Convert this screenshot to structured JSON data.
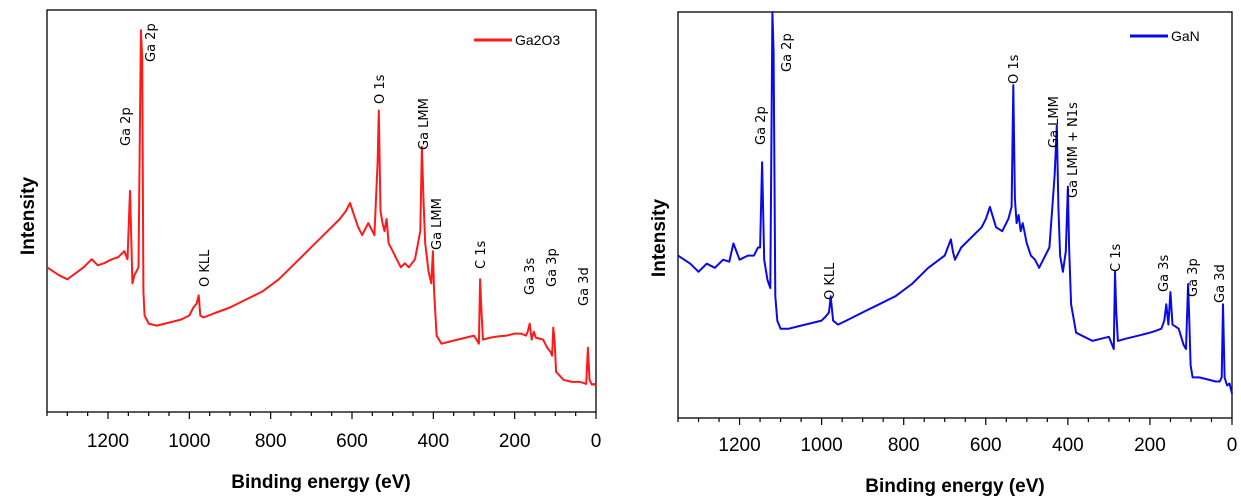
{
  "chart_data": [
    {
      "type": "line",
      "xlabel": "Binding energy (eV)",
      "ylabel": "Intensity",
      "xlim": [
        1350,
        0
      ],
      "ylim": [
        0,
        100
      ],
      "x_ticks": [
        1200,
        1000,
        800,
        600,
        400,
        200,
        0
      ],
      "legend_position": "top-right",
      "series": [
        {
          "name": "Ga2O3",
          "color": "#ff1a1a",
          "x": [
            1350,
            1320,
            1300,
            1280,
            1260,
            1240,
            1225,
            1210,
            1190,
            1175,
            1160,
            1152,
            1146,
            1142,
            1140,
            1135,
            1125,
            1119,
            1116,
            1113,
            1110,
            1100,
            1080,
            1060,
            1040,
            1020,
            1000,
            990,
            982,
            977,
            973,
            965,
            940,
            900,
            860,
            820,
            780,
            740,
            700,
            660,
            630,
            615,
            605,
            595,
            585,
            575,
            560,
            545,
            537,
            534,
            530,
            525,
            520,
            515,
            510,
            500,
            490,
            480,
            470,
            460,
            445,
            432,
            428,
            424,
            420,
            412,
            405,
            401,
            398,
            392,
            380,
            360,
            340,
            320,
            300,
            288,
            285,
            282,
            278,
            260,
            240,
            220,
            200,
            185,
            172,
            168,
            163,
            158,
            153,
            148,
            130,
            120,
            112,
            108,
            105,
            102,
            98,
            80,
            60,
            40,
            30,
            24,
            20,
            16,
            10,
            5,
            0
          ],
          "values": [
            36,
            34,
            33,
            34.5,
            36,
            38,
            36.5,
            37,
            38,
            38.5,
            40,
            38,
            55,
            40,
            32,
            34,
            36,
            95,
            88,
            30,
            24,
            22,
            21.5,
            22,
            22.5,
            23,
            24,
            26,
            27,
            29,
            24,
            23.5,
            24.5,
            26,
            28,
            30,
            33,
            37,
            41,
            45,
            48,
            50,
            52,
            49,
            46,
            44,
            47,
            44,
            62,
            75,
            50,
            47,
            45,
            48,
            42,
            40,
            38,
            36,
            37,
            36,
            38,
            45,
            66,
            52,
            42,
            35,
            32,
            40,
            30,
            19,
            17,
            17.5,
            18,
            18.5,
            19,
            17,
            33,
            26,
            18,
            18.5,
            18.8,
            19,
            19.5,
            19.5,
            19,
            20,
            22,
            18,
            20,
            18.5,
            18,
            16,
            15,
            14,
            21,
            18,
            10,
            8,
            7.5,
            7.5,
            7.2,
            7,
            16,
            8,
            6.8,
            7,
            6.5
          ]
        }
      ],
      "annotations": [
        "Ga 2p",
        "Ga 2p",
        "O KLL",
        "O 1s",
        "Ga LMM",
        "Ga LMM",
        "C 1s",
        "Ga 3s",
        "Ga 3p",
        "Ga 3d"
      ]
    },
    {
      "type": "line",
      "xlabel": "Binding energy (eV)",
      "ylabel": "Intensity",
      "xlim": [
        1350,
        0
      ],
      "ylim": [
        0,
        100
      ],
      "x_ticks": [
        1200,
        1000,
        800,
        600,
        400,
        200,
        0
      ],
      "legend_position": "top-right",
      "series": [
        {
          "name": "GaN",
          "color": "#0a0ae6",
          "x": [
            1350,
            1320,
            1300,
            1280,
            1260,
            1240,
            1225,
            1215,
            1200,
            1180,
            1165,
            1155,
            1150,
            1145,
            1140,
            1132,
            1125,
            1120,
            1117,
            1113,
            1108,
            1100,
            1080,
            1060,
            1040,
            1020,
            1000,
            990,
            982,
            978,
            972,
            960,
            940,
            900,
            860,
            820,
            780,
            740,
            700,
            685,
            680,
            675,
            660,
            630,
            610,
            600,
            590,
            575,
            560,
            545,
            537,
            533,
            529,
            525,
            520,
            515,
            510,
            500,
            490,
            480,
            470,
            460,
            445,
            432,
            427,
            423,
            419,
            412,
            405,
            400,
            397,
            392,
            380,
            360,
            340,
            320,
            300,
            288,
            285,
            282,
            278,
            260,
            240,
            220,
            200,
            185,
            172,
            165,
            160,
            155,
            150,
            145,
            130,
            118,
            112,
            107,
            104,
            101,
            96,
            80,
            60,
            40,
            30,
            25,
            22,
            18,
            12,
            6,
            0
          ],
          "values": [
            40,
            38,
            36,
            38,
            37,
            39,
            38.5,
            43,
            39,
            40,
            40,
            42,
            42,
            63,
            39,
            34,
            32,
            100,
            90,
            30,
            24,
            22,
            22,
            22.5,
            23,
            23.5,
            24,
            25,
            26,
            30,
            24,
            23,
            24,
            26,
            28,
            30,
            33,
            37,
            40,
            44,
            41,
            39,
            42,
            45,
            47,
            49,
            52,
            47,
            46,
            49,
            52,
            82,
            54,
            48,
            50,
            46,
            48,
            43,
            40,
            39,
            37,
            39,
            42,
            60,
            72,
            52,
            40,
            36,
            41,
            57,
            42,
            28,
            21,
            20,
            19,
            19.5,
            20,
            17,
            36,
            26,
            19,
            19.5,
            20,
            20.5,
            21,
            21.5,
            22,
            24,
            28,
            23,
            31,
            23,
            22,
            18,
            17,
            33,
            24,
            13,
            10,
            10,
            9.5,
            9,
            9,
            10,
            28,
            10,
            8,
            8.5,
            6
          ]
        }
      ],
      "annotations": [
        "Ga 2p",
        "Ga 2p",
        "O KLL",
        "O 1s",
        "Ga LMM",
        "Ga LMM + N1s",
        "C 1s",
        "Ga 3s",
        "Ga 3p",
        "Ga 3d"
      ]
    }
  ]
}
